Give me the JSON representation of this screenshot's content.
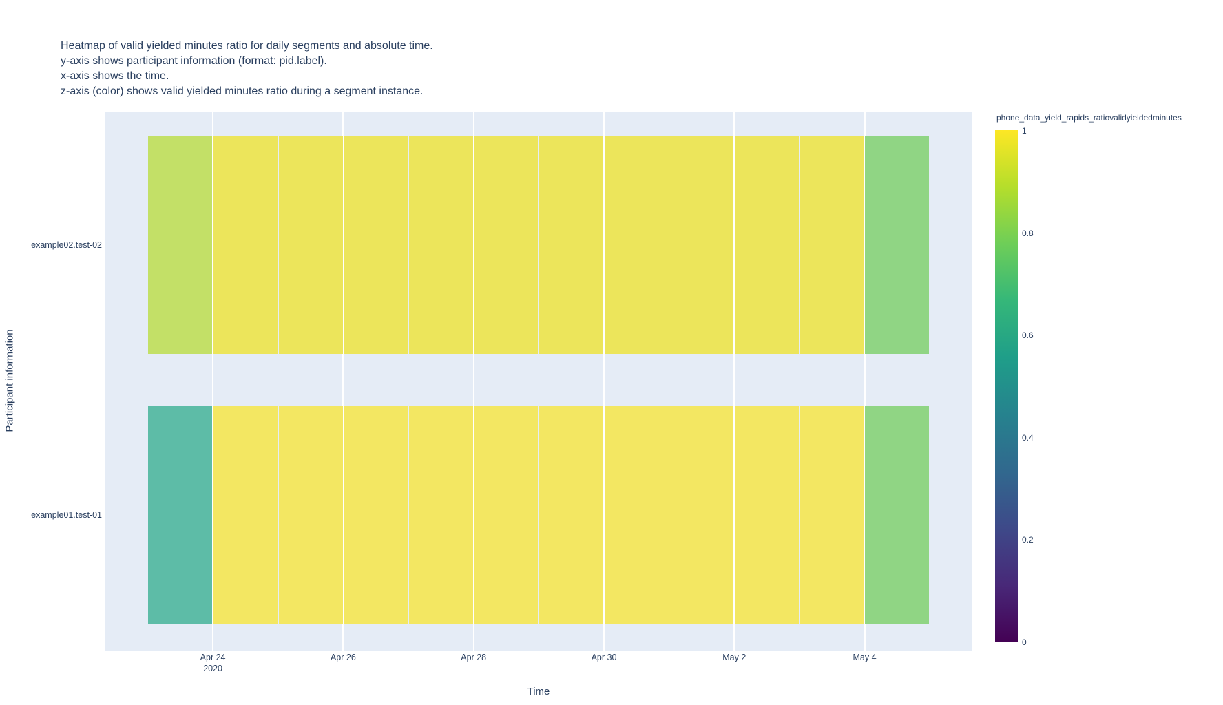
{
  "chart_data": {
    "type": "heatmap",
    "title_lines": [
      "Heatmap of valid yielded minutes ratio for daily segments and absolute time.",
      "y-axis shows participant information (format: pid.label).",
      "x-axis shows the time.",
      "z-axis (color) shows valid yielded minutes ratio during a segment instance."
    ],
    "xlabel": "Time",
    "ylabel": "Participant information",
    "x_dates": [
      "Apr 23",
      "Apr 24",
      "Apr 25",
      "Apr 26",
      "Apr 27",
      "Apr 28",
      "Apr 29",
      "Apr 30",
      "May 1",
      "May 2",
      "May 3",
      "May 4"
    ],
    "x_tick_labels": [
      {
        "text": "Apr 24",
        "year": "2020"
      },
      {
        "text": "Apr 26"
      },
      {
        "text": "Apr 28"
      },
      {
        "text": "Apr 30"
      },
      {
        "text": "May 2"
      },
      {
        "text": "May 4"
      }
    ],
    "y_categories": [
      "example02.test-02",
      "example01.test-01"
    ],
    "series": [
      {
        "name": "example02.test-02",
        "values": [
          0.87,
          0.95,
          0.95,
          0.95,
          0.95,
          0.95,
          0.95,
          0.95,
          0.95,
          0.95,
          0.95,
          0.78
        ],
        "cell_colors": [
          "#c3e067",
          "#ece55b",
          "#ece55b",
          "#ece55b",
          "#ece55b",
          "#ece55b",
          "#ece55b",
          "#ece55b",
          "#ece55b",
          "#ece55b",
          "#ece55b",
          "#90d584"
        ]
      },
      {
        "name": "example01.test-01",
        "values": [
          0.58,
          0.98,
          0.98,
          0.98,
          0.98,
          0.98,
          0.98,
          0.98,
          0.98,
          0.98,
          0.98,
          0.78
        ],
        "cell_colors": [
          "#5dbca7",
          "#f3e762",
          "#f3e762",
          "#f3e762",
          "#f3e762",
          "#f3e762",
          "#f3e762",
          "#f3e762",
          "#f3e762",
          "#f3e762",
          "#f3e762",
          "#90d584"
        ]
      }
    ],
    "zlim": [
      0,
      1
    ],
    "colorbar": {
      "title": "phone_data_yield_rapids_ratiovalidyieldedminutes",
      "ticks": [
        "1",
        "0.8",
        "0.6",
        "0.4",
        "0.2",
        "0"
      ],
      "colorscale": "viridis"
    },
    "plot_bg": "#e5ecf6",
    "text_color": "#2a3f5f",
    "grid": true,
    "legend_position": "none"
  }
}
